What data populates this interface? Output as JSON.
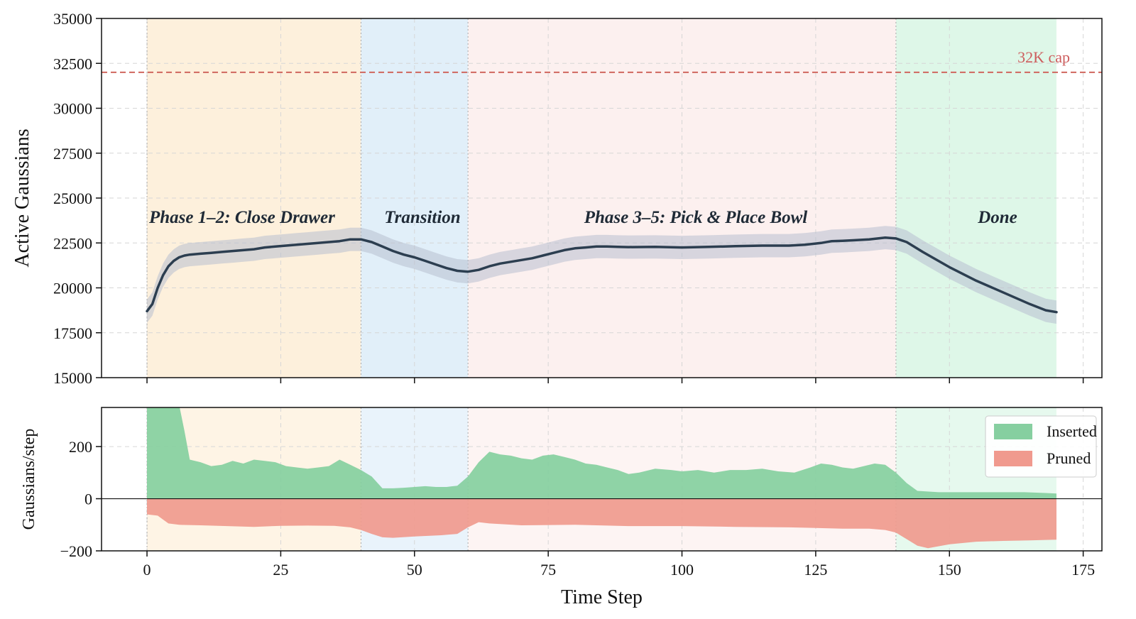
{
  "chart_data": [
    {
      "type": "line",
      "ylabel": "Active Gaussians",
      "xlim": [
        -8.5,
        178.5
      ],
      "ylim": [
        15000,
        35000
      ],
      "yticks": [
        15000,
        17500,
        20000,
        22500,
        25000,
        27500,
        30000,
        32500,
        35000
      ],
      "xticks": [
        0,
        25,
        50,
        75,
        100,
        125,
        150,
        175
      ],
      "grid": true,
      "phases": [
        {
          "label": "Phase 1–2: Close Drawer",
          "start": 0,
          "end": 40,
          "color": "#fdf0dc"
        },
        {
          "label": "Transition",
          "start": 40,
          "end": 60,
          "color": "#e1eff9"
        },
        {
          "label": "Phase 3–5: Pick & Place Bowl",
          "start": 60,
          "end": 140,
          "color": "#fcf0ef"
        },
        {
          "label": "Done",
          "start": 140,
          "end": 170,
          "color": "#def7e8"
        }
      ],
      "cap": {
        "label": "32K cap",
        "value": 32000,
        "color": "#d0675f"
      },
      "line_color": "#2c3e50",
      "band_color": "#b8bfd0",
      "band_halfwidth": 650,
      "series": [
        {
          "x": [
            0,
            1,
            2,
            3,
            4,
            5,
            6,
            7,
            8,
            10,
            12,
            14,
            16,
            18,
            20,
            22,
            24,
            26,
            28,
            30,
            32,
            34,
            36,
            38,
            40,
            42,
            44,
            46,
            48,
            50,
            52,
            54,
            56,
            58,
            60,
            62,
            64,
            66,
            68,
            70,
            72,
            74,
            76,
            78,
            80,
            82,
            84,
            86,
            88,
            90,
            95,
            100,
            105,
            110,
            115,
            120,
            123,
            126,
            128,
            130,
            132,
            135,
            138,
            140,
            142,
            145,
            150,
            155,
            160,
            165,
            168,
            170
          ],
          "values": [
            18700,
            19100,
            20000,
            20700,
            21200,
            21500,
            21700,
            21800,
            21850,
            21900,
            21950,
            22000,
            22050,
            22100,
            22150,
            22250,
            22300,
            22350,
            22400,
            22450,
            22500,
            22550,
            22600,
            22700,
            22700,
            22550,
            22300,
            22050,
            21850,
            21700,
            21500,
            21300,
            21100,
            20950,
            20900,
            21000,
            21200,
            21350,
            21450,
            21550,
            21650,
            21800,
            21950,
            22100,
            22200,
            22250,
            22300,
            22300,
            22280,
            22270,
            22280,
            22250,
            22280,
            22320,
            22350,
            22350,
            22400,
            22500,
            22600,
            22620,
            22650,
            22700,
            22800,
            22750,
            22550,
            22000,
            21150,
            20400,
            19750,
            19100,
            18750,
            18650
          ]
        }
      ]
    },
    {
      "type": "area",
      "xlabel": "Time Step",
      "ylabel": "Gaussians/step",
      "xlim": [
        -8.5,
        178.5
      ],
      "ylim": [
        -200,
        350
      ],
      "yticks": [
        -200,
        0,
        200
      ],
      "xticks": [
        0,
        25,
        50,
        75,
        100,
        125,
        150,
        175
      ],
      "grid": true,
      "legend": "top-right",
      "series": [
        {
          "name": "Inserted",
          "color": "#86cfa0",
          "x": [
            0,
            1,
            2,
            3,
            4,
            5,
            6,
            7,
            8,
            10,
            12,
            14,
            16,
            18,
            20,
            22,
            24,
            26,
            28,
            30,
            32,
            34,
            36,
            38,
            40,
            42,
            44,
            46,
            48,
            50,
            52,
            54,
            56,
            58,
            60,
            62,
            64,
            66,
            68,
            70,
            72,
            74,
            76,
            78,
            80,
            82,
            84,
            86,
            88,
            90,
            92,
            95,
            98,
            100,
            103,
            106,
            109,
            112,
            115,
            118,
            121,
            124,
            126,
            128,
            130,
            132,
            134,
            136,
            138,
            140,
            142,
            144,
            148,
            152,
            156,
            160,
            164,
            168,
            170
          ],
          "values": [
            360,
            360,
            360,
            360,
            360,
            360,
            360,
            260,
            150,
            140,
            125,
            130,
            145,
            135,
            150,
            145,
            140,
            125,
            120,
            115,
            120,
            125,
            150,
            130,
            110,
            85,
            40,
            40,
            42,
            45,
            48,
            45,
            45,
            50,
            85,
            140,
            180,
            170,
            165,
            155,
            150,
            165,
            170,
            160,
            150,
            135,
            130,
            120,
            110,
            95,
            100,
            115,
            110,
            105,
            110,
            100,
            110,
            110,
            115,
            105,
            100,
            120,
            135,
            130,
            120,
            115,
            125,
            135,
            130,
            100,
            60,
            30,
            25,
            25,
            25,
            25,
            25,
            22,
            20
          ]
        },
        {
          "name": "Pruned",
          "color": "#f09a8e",
          "x": [
            0,
            2,
            3,
            4,
            6,
            10,
            15,
            20,
            25,
            30,
            35,
            38,
            40,
            42,
            44,
            46,
            50,
            55,
            58,
            60,
            62,
            64,
            70,
            80,
            90,
            100,
            110,
            120,
            125,
            130,
            135,
            138,
            140,
            142,
            144,
            146,
            150,
            155,
            160,
            165,
            168,
            170
          ],
          "values": [
            -60,
            -65,
            -80,
            -95,
            -100,
            -102,
            -105,
            -108,
            -104,
            -103,
            -104,
            -110,
            -120,
            -135,
            -148,
            -150,
            -145,
            -140,
            -135,
            -110,
            -90,
            -95,
            -102,
            -100,
            -105,
            -105,
            -108,
            -110,
            -112,
            -115,
            -115,
            -120,
            -130,
            -155,
            -180,
            -190,
            -175,
            -165,
            -162,
            -160,
            -158,
            -157
          ]
        }
      ]
    }
  ]
}
